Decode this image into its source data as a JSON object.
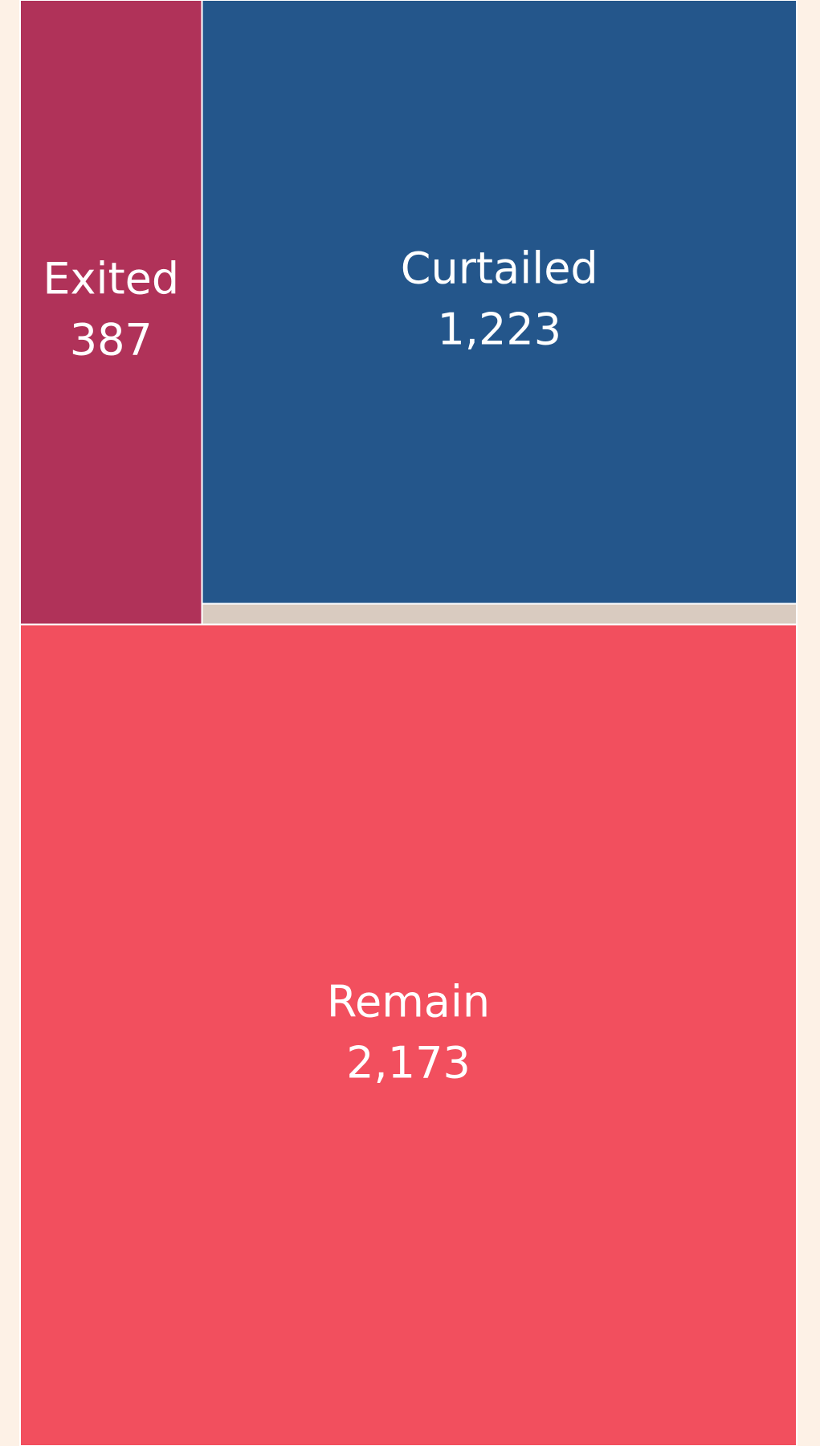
{
  "chart_data": {
    "type": "treemap",
    "categories": [
      "Exited",
      "Curtailed",
      null,
      "Remain"
    ],
    "values": [
      387,
      1223,
      42,
      2173
    ],
    "value_labels": [
      "387",
      "1,223",
      null,
      "2,173"
    ],
    "colors": [
      "#b03259",
      "#24568b",
      "#d9cbc0",
      "#f24f5e"
    ]
  }
}
